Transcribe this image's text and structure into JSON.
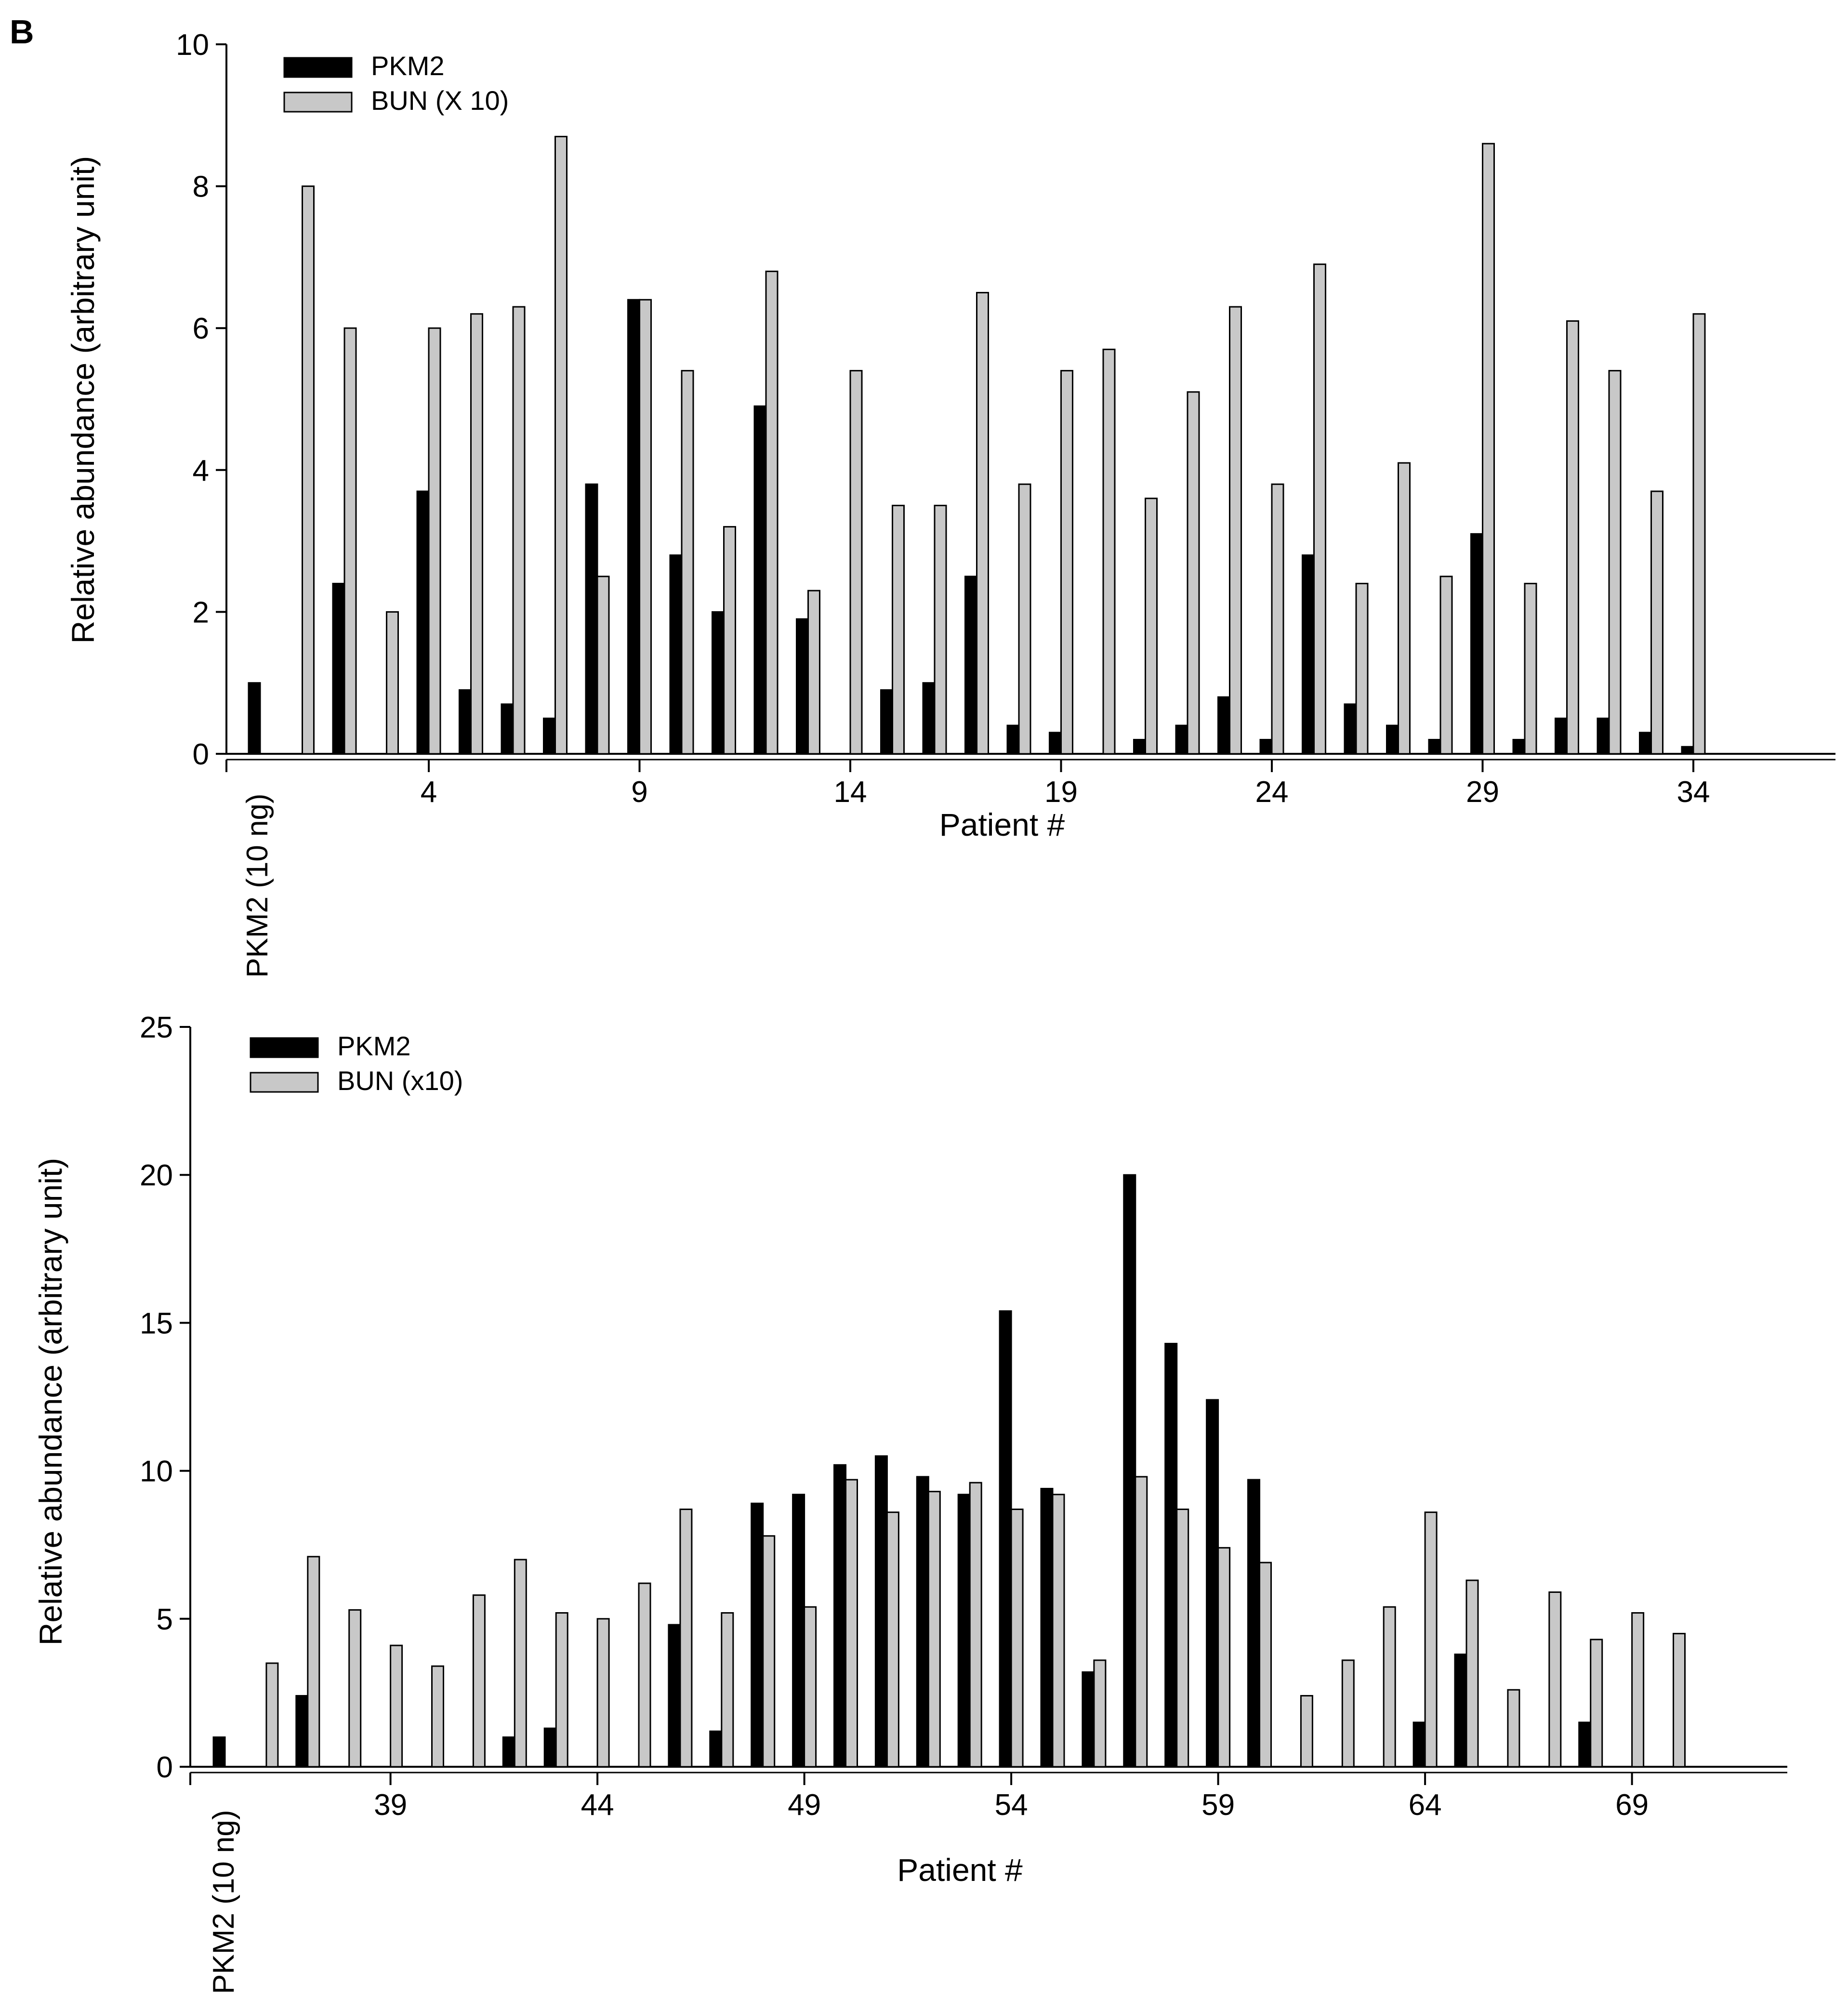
{
  "panel_label": "B",
  "colors": {
    "pkm2": "#000000",
    "bun": "#c8c8c8",
    "outline": "#000000"
  },
  "chart_data": [
    {
      "type": "bar",
      "title": "",
      "xlabel": "Patient #",
      "ylabel": "Relative abundance (arbitrary unit)",
      "ylim": [
        0,
        10
      ],
      "yticks": [
        0,
        2,
        4,
        6,
        8,
        10
      ],
      "grid": false,
      "legend_position": "top-left",
      "first_category_label": "PKM2 (10 ng)",
      "categories": [
        "PKM2 (10 ng)",
        "1",
        "2",
        "3",
        "4",
        "5",
        "6",
        "7",
        "8",
        "9",
        "10",
        "11",
        "12",
        "13",
        "14",
        "15",
        "16",
        "17",
        "18",
        "19",
        "20",
        "21",
        "22",
        "23",
        "24",
        "25",
        "26",
        "27",
        "28",
        "29",
        "30",
        "31",
        "32",
        "33",
        "34",
        "35"
      ],
      "x_tick_labels": [
        "4",
        "9",
        "14",
        "19",
        "24",
        "29",
        "34"
      ],
      "series": [
        {
          "name": "PKM2",
          "values": [
            1.0,
            0,
            2.4,
            0,
            3.7,
            0.9,
            0.7,
            0.5,
            3.8,
            6.4,
            2.8,
            2.0,
            4.9,
            1.9,
            0,
            0.9,
            1.0,
            2.5,
            0.4,
            0.3,
            0,
            0.2,
            0.4,
            0.8,
            0.2,
            2.8,
            0.7,
            0.4,
            0.2,
            3.1,
            0.2,
            0.5,
            0.5,
            0.3,
            0.1,
            0
          ]
        },
        {
          "name": "BUN (X 10)",
          "values": [
            0,
            8.0,
            6.0,
            2.0,
            6.0,
            6.2,
            6.3,
            8.7,
            2.5,
            6.4,
            5.4,
            3.2,
            6.8,
            2.3,
            5.4,
            3.5,
            3.5,
            6.5,
            3.8,
            5.4,
            5.7,
            3.6,
            5.1,
            6.3,
            3.8,
            6.9,
            2.4,
            4.1,
            2.5,
            8.6,
            2.4,
            6.1,
            5.4,
            3.7,
            6.2,
            0
          ]
        }
      ]
    },
    {
      "type": "bar",
      "title": "",
      "xlabel": "Patient #",
      "ylabel": "Relative abundance (arbitrary unit)",
      "ylim": [
        0,
        25
      ],
      "yticks": [
        0,
        5,
        10,
        15,
        20,
        25
      ],
      "grid": false,
      "legend_position": "top-left",
      "first_category_label": "PKM2 (10 ng)",
      "categories": [
        "PKM2 (10 ng)",
        "36",
        "37",
        "38",
        "39",
        "40",
        "41",
        "42",
        "43",
        "44",
        "45",
        "46",
        "47",
        "48",
        "49",
        "50",
        "51",
        "52",
        "53",
        "54",
        "55",
        "56",
        "57",
        "58",
        "59",
        "60",
        "61",
        "62",
        "63",
        "64",
        "65",
        "66",
        "67",
        "68",
        "69",
        "70"
      ],
      "x_tick_labels": [
        "39",
        "44",
        "49",
        "54",
        "59",
        "64",
        "69"
      ],
      "series": [
        {
          "name": "PKM2",
          "values": [
            1.0,
            0,
            2.4,
            0,
            0,
            0,
            0,
            1.0,
            1.3,
            0,
            0,
            4.8,
            1.2,
            8.9,
            9.2,
            10.2,
            10.5,
            9.8,
            9.2,
            15.4,
            9.4,
            3.2,
            20.0,
            14.3,
            12.4,
            9.7,
            0,
            0,
            0,
            1.5,
            3.8,
            0,
            0,
            1.5,
            0,
            0
          ]
        },
        {
          "name": "BUN (x10)",
          "values": [
            0,
            3.5,
            7.1,
            5.3,
            4.1,
            3.4,
            5.8,
            7.0,
            5.2,
            5.0,
            6.2,
            8.7,
            5.2,
            7.8,
            5.4,
            9.7,
            8.6,
            9.3,
            9.6,
            8.7,
            9.2,
            3.6,
            9.8,
            8.7,
            7.4,
            6.9,
            2.4,
            3.6,
            5.4,
            8.6,
            6.3,
            2.6,
            5.9,
            4.3,
            5.2,
            4.5
          ]
        }
      ]
    }
  ]
}
